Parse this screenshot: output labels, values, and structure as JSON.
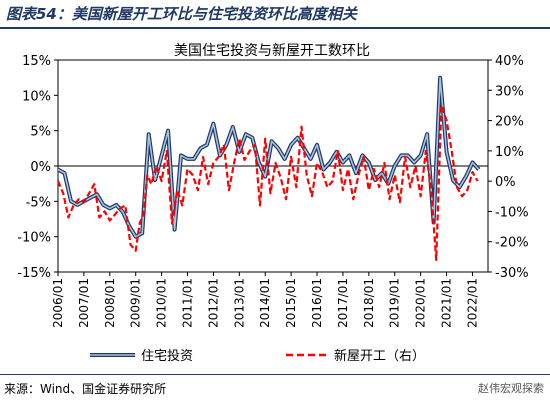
{
  "header": {
    "title": "图表54：美国新屋开工环比与住宅投资环比高度相关"
  },
  "footer": {
    "source": "来源：Wind、国金证券研究所",
    "watermark": "赵伟宏观探索"
  },
  "colors": {
    "investment_outer": "#1f3864",
    "investment_inner": "#a9c2e0",
    "housing_starts": "#ff0000",
    "title": "#1f3864"
  },
  "chart_data": {
    "type": "line",
    "title": "美国住宅投资与新屋开工数环比",
    "x_ticks": [
      "2006/01",
      "2007/01",
      "2008/01",
      "2009/01",
      "2010/01",
      "2011/01",
      "2012/01",
      "2013/01",
      "2014/01",
      "2015/01",
      "2016/01",
      "2017/01",
      "2018/01",
      "2019/01",
      "2020/01",
      "2021/01",
      "2022/01"
    ],
    "y_left": {
      "min": -15,
      "max": 15,
      "ticks": [
        "15%",
        "10%",
        "5%",
        "0%",
        "-5%",
        "-10%",
        "-15%"
      ]
    },
    "y_right": {
      "min": -30,
      "max": 40,
      "ticks": [
        "40%",
        "30%",
        "20%",
        "10%",
        "0%",
        "-10%",
        "-20%",
        "-30%"
      ]
    },
    "legend": {
      "position": "bottom"
    },
    "series": [
      {
        "name": "住宅投资",
        "axis": "left",
        "style": "solid-double",
        "x": [
          2006.0,
          2006.25,
          2006.5,
          2006.75,
          2007.0,
          2007.25,
          2007.5,
          2007.75,
          2008.0,
          2008.25,
          2008.5,
          2008.75,
          2009.0,
          2009.25,
          2009.5,
          2009.75,
          2010.0,
          2010.25,
          2010.5,
          2010.75,
          2011.0,
          2011.25,
          2011.5,
          2011.75,
          2012.0,
          2012.25,
          2012.5,
          2012.75,
          2013.0,
          2013.25,
          2013.5,
          2013.75,
          2014.0,
          2014.25,
          2014.5,
          2014.75,
          2015.0,
          2015.25,
          2015.5,
          2015.75,
          2016.0,
          2016.25,
          2016.5,
          2016.75,
          2017.0,
          2017.25,
          2017.5,
          2017.75,
          2018.0,
          2018.25,
          2018.5,
          2018.75,
          2019.0,
          2019.25,
          2019.5,
          2019.75,
          2020.0,
          2020.25,
          2020.5,
          2020.75,
          2021.0,
          2021.25,
          2021.5,
          2021.75,
          2022.0,
          2022.25
        ],
        "values": [
          -0.5,
          -1.0,
          -5.0,
          -5.5,
          -5.0,
          -4.5,
          -4.0,
          -5.5,
          -6.0,
          -5.5,
          -6.5,
          -8.5,
          -10.0,
          -9.5,
          4.5,
          -2.0,
          1.5,
          5.0,
          -9.0,
          1.5,
          1.0,
          1.0,
          2.5,
          3.0,
          6.0,
          1.5,
          3.0,
          5.5,
          2.0,
          4.5,
          4.0,
          0.5,
          -1.5,
          3.5,
          2.5,
          1.0,
          3.0,
          4.0,
          2.5,
          1.0,
          3.0,
          -0.5,
          0.5,
          2.0,
          0.5,
          1.5,
          -1.0,
          1.5,
          0.5,
          -2.0,
          -1.0,
          -2.5,
          0.0,
          1.5,
          1.5,
          0.5,
          1.5,
          4.5,
          -8.0,
          12.5,
          2.0,
          -2.0,
          -3.0,
          -1.5,
          0.5,
          -0.5
        ]
      },
      {
        "name": "新屋开工（右）",
        "axis": "right",
        "style": "dashed",
        "x": [
          2006.0,
          2006.2,
          2006.4,
          2006.6,
          2006.8,
          2007.0,
          2007.2,
          2007.4,
          2007.6,
          2007.8,
          2008.0,
          2008.2,
          2008.4,
          2008.6,
          2008.8,
          2009.0,
          2009.15,
          2009.3,
          2009.45,
          2009.6,
          2009.8,
          2010.0,
          2010.2,
          2010.4,
          2010.6,
          2010.8,
          2011.0,
          2011.2,
          2011.4,
          2011.6,
          2011.8,
          2012.0,
          2012.2,
          2012.4,
          2012.6,
          2012.8,
          2013.0,
          2013.2,
          2013.4,
          2013.6,
          2013.8,
          2014.0,
          2014.2,
          2014.4,
          2014.6,
          2014.8,
          2015.0,
          2015.2,
          2015.4,
          2015.6,
          2015.8,
          2016.0,
          2016.2,
          2016.4,
          2016.6,
          2016.8,
          2017.0,
          2017.2,
          2017.4,
          2017.6,
          2017.8,
          2018.0,
          2018.2,
          2018.4,
          2018.6,
          2018.8,
          2019.0,
          2019.2,
          2019.4,
          2019.6,
          2019.8,
          2020.0,
          2020.2,
          2020.4,
          2020.6,
          2020.8,
          2021.0,
          2021.2,
          2021.4,
          2021.6,
          2021.8,
          2022.0,
          2022.2
        ],
        "values": [
          0,
          -4,
          -12,
          -8,
          -6,
          -7,
          -4,
          -1,
          -12,
          -10,
          -13,
          -11,
          -9,
          -8,
          -21,
          -23,
          -14,
          -11,
          2,
          -1,
          5,
          0,
          10,
          -14,
          -3,
          -8,
          4,
          2,
          -3,
          8,
          -1,
          6,
          8,
          12,
          -3,
          6,
          14,
          7,
          10,
          12,
          -8,
          14,
          -4,
          6,
          1,
          -6,
          8,
          -2,
          18,
          2,
          -5,
          6,
          3,
          -2,
          0,
          10,
          -3,
          4,
          -6,
          2,
          8,
          -3,
          4,
          -2,
          6,
          -6,
          2,
          -7,
          8,
          -2,
          5,
          -5,
          10,
          -2,
          -26,
          25,
          20,
          10,
          -2,
          -5,
          -3,
          3,
          0
        ]
      }
    ]
  }
}
